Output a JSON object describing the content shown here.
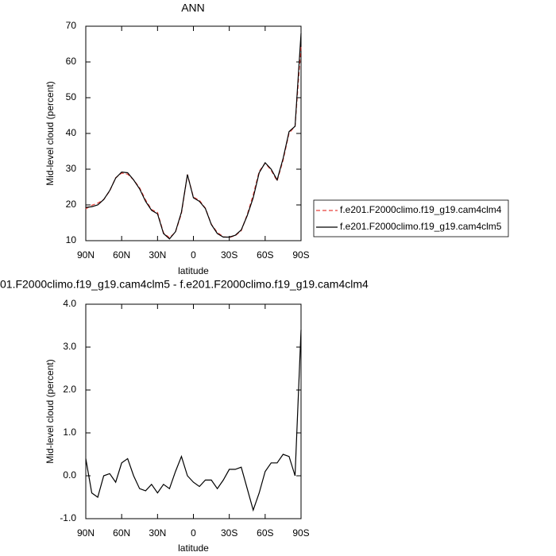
{
  "chart_data": [
    {
      "type": "line",
      "title": "ANN",
      "xlabel": "latitude",
      "ylabel": "Mid-level cloud (percent)",
      "x": [
        90,
        85,
        80,
        75,
        70,
        65,
        60,
        55,
        50,
        45,
        40,
        35,
        30,
        25,
        20,
        15,
        10,
        5,
        0,
        -5,
        -10,
        -15,
        -20,
        -25,
        -30,
        -35,
        -40,
        -45,
        -50,
        -55,
        -60,
        -65,
        -70,
        -75,
        -80,
        -85,
        -90
      ],
      "xlim": [
        90,
        -90
      ],
      "xticks": [
        {
          "value": 90,
          "label": "90N"
        },
        {
          "value": 60,
          "label": "60N"
        },
        {
          "value": 30,
          "label": "30N"
        },
        0,
        {
          "value": -30,
          "label": "30S"
        },
        {
          "value": -60,
          "label": "60S"
        },
        {
          "value": -90,
          "label": "90S"
        }
      ],
      "ylim": [
        10,
        70
      ],
      "yticks": [
        10,
        20,
        30,
        40,
        50,
        60,
        70
      ],
      "legend": "right",
      "series": [
        {
          "name": "f.e201.F2000climo.f19_g19.cam4clm4",
          "color": "#e8403a",
          "dashed": true,
          "values": [
            18.9,
            19.9,
            20.5,
            21.5,
            23.9,
            27.6,
            28.9,
            28.6,
            27.0,
            24.8,
            21.4,
            18.7,
            17.9,
            12.2,
            10.8,
            12.4,
            17.6,
            28.5,
            22.2,
            21.3,
            19.1,
            14.6,
            12.3,
            11.1,
            10.9,
            11.4,
            12.8,
            17.3,
            22.8,
            29.4,
            31.7,
            29.7,
            26.7,
            32.5,
            40.1,
            42.0,
            64.6
          ]
        },
        {
          "name": "f.e201.F2000climo.f19_g19.cam4clm5",
          "color": "#000000",
          "dashed": false,
          "values": [
            19.3,
            19.5,
            20,
            21.5,
            24,
            27.5,
            29.2,
            29,
            27,
            24.5,
            21,
            18.5,
            17.5,
            12,
            10.5,
            12.5,
            18,
            28.5,
            22,
            21,
            19,
            14.5,
            12,
            11,
            11,
            11.5,
            13,
            17,
            22,
            29,
            31.8,
            30,
            27,
            33,
            40.5,
            42,
            68
          ]
        }
      ]
    },
    {
      "type": "line",
      "title": "01.F2000climo.f19_g19.cam4clm5 - f.e201.F2000climo.f19_g19.cam4clm4",
      "xlabel": "latitude",
      "ylabel": "Mid-level cloud (percent)",
      "x": [
        90,
        85,
        80,
        75,
        70,
        65,
        60,
        55,
        50,
        45,
        40,
        35,
        30,
        25,
        20,
        15,
        10,
        5,
        0,
        -5,
        -10,
        -15,
        -20,
        -25,
        -30,
        -35,
        -40,
        -45,
        -50,
        -55,
        -60,
        -65,
        -70,
        -75,
        -80,
        -85,
        -90
      ],
      "xlim": [
        90,
        -90
      ],
      "xticks": [
        {
          "value": 90,
          "label": "90N"
        },
        {
          "value": 60,
          "label": "60N"
        },
        {
          "value": 30,
          "label": "30N"
        },
        0,
        {
          "value": -30,
          "label": "30S"
        },
        {
          "value": -60,
          "label": "60S"
        },
        {
          "value": -90,
          "label": "90S"
        }
      ],
      "ylim": [
        -1,
        4
      ],
      "yticks": [
        {
          "value": -1,
          "label": "-1.0"
        },
        {
          "value": 0,
          "label": "0.0"
        },
        {
          "value": 1,
          "label": "1.0"
        },
        {
          "value": 2,
          "label": "2.0"
        },
        {
          "value": 3,
          "label": "3.0"
        },
        {
          "value": 4,
          "label": "4.0"
        }
      ],
      "series": [
        {
          "color": "#000000",
          "dashed": false,
          "values": [
            0.4,
            -0.4,
            -0.5,
            0.0,
            0.05,
            -0.15,
            0.3,
            0.4,
            0.0,
            -0.3,
            -0.35,
            -0.2,
            -0.4,
            -0.2,
            -0.3,
            0.1,
            0.45,
            0.0,
            -0.15,
            -0.25,
            -0.1,
            -0.1,
            -0.3,
            -0.1,
            0.15,
            0.15,
            0.2,
            -0.3,
            -0.8,
            -0.4,
            0.1,
            0.3,
            0.3,
            0.5,
            0.45,
            0.0,
            3.4
          ]
        }
      ]
    }
  ]
}
